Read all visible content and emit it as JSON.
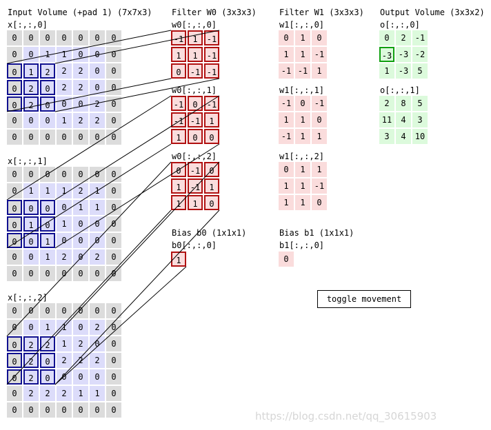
{
  "input": {
    "title": "Input Volume (+pad 1) (7x7x3)",
    "slices": [
      {
        "label": "x[:,:,0]",
        "rows": [
          [
            0,
            0,
            0,
            0,
            0,
            0,
            0
          ],
          [
            0,
            0,
            1,
            1,
            0,
            0,
            0
          ],
          [
            0,
            1,
            2,
            2,
            2,
            0,
            0
          ],
          [
            0,
            2,
            0,
            2,
            2,
            0,
            0
          ],
          [
            0,
            2,
            0,
            0,
            0,
            2,
            0
          ],
          [
            0,
            0,
            0,
            1,
            2,
            2,
            0
          ],
          [
            0,
            0,
            0,
            0,
            0,
            0,
            0
          ]
        ]
      },
      {
        "label": "x[:,:,1]",
        "rows": [
          [
            0,
            0,
            0,
            0,
            0,
            0,
            0
          ],
          [
            0,
            1,
            1,
            1,
            2,
            1,
            0
          ],
          [
            0,
            0,
            0,
            0,
            1,
            1,
            0
          ],
          [
            0,
            1,
            0,
            1,
            0,
            0,
            0
          ],
          [
            0,
            0,
            1,
            0,
            0,
            0,
            0
          ],
          [
            0,
            0,
            1,
            2,
            0,
            2,
            0
          ],
          [
            0,
            0,
            0,
            0,
            0,
            0,
            0
          ]
        ]
      },
      {
        "label": "x[:,:,2]",
        "rows": [
          [
            0,
            0,
            0,
            0,
            0,
            0,
            0
          ],
          [
            0,
            0,
            1,
            1,
            0,
            2,
            0
          ],
          [
            0,
            2,
            2,
            1,
            2,
            0,
            0
          ],
          [
            0,
            2,
            0,
            2,
            2,
            2,
            0
          ],
          [
            0,
            2,
            0,
            0,
            0,
            0,
            0
          ],
          [
            0,
            2,
            2,
            2,
            1,
            1,
            0
          ],
          [
            0,
            0,
            0,
            0,
            0,
            0,
            0
          ]
        ]
      }
    ]
  },
  "filter0": {
    "title": "Filter W0 (3x3x3)",
    "slices": [
      {
        "label": "w0[:,:,0]",
        "rows": [
          [
            "-1",
            "1",
            "-1"
          ],
          [
            "1",
            "1",
            "-1"
          ],
          [
            "0",
            "-1",
            "-1"
          ]
        ]
      },
      {
        "label": "w0[:,:,1]",
        "rows": [
          [
            "-1",
            "0",
            "-1"
          ],
          [
            "-1",
            "-1",
            "1"
          ],
          [
            "1",
            "0",
            "0"
          ]
        ]
      },
      {
        "label": "w0[:,:,2]",
        "rows": [
          [
            "0",
            "-1",
            "0"
          ],
          [
            "1",
            "-1",
            "1"
          ],
          [
            "1",
            "1",
            "0"
          ]
        ]
      }
    ],
    "bias_title": "Bias b0 (1x1x1)",
    "bias_label": "b0[:,:,0]",
    "bias_value": "1"
  },
  "filter1": {
    "title": "Filter W1 (3x3x3)",
    "slices": [
      {
        "label": "w1[:,:,0]",
        "rows": [
          [
            "0",
            "1",
            "0"
          ],
          [
            "1",
            "1",
            "-1"
          ],
          [
            "-1",
            "-1",
            "1"
          ]
        ]
      },
      {
        "label": "w1[:,:,1]",
        "rows": [
          [
            "-1",
            "0",
            "-1"
          ],
          [
            "1",
            "1",
            "0"
          ],
          [
            "-1",
            "1",
            "1"
          ]
        ]
      },
      {
        "label": "w1[:,:,2]",
        "rows": [
          [
            "0",
            "1",
            "1"
          ],
          [
            "1",
            "1",
            "-1"
          ],
          [
            "1",
            "1",
            "0"
          ]
        ]
      }
    ],
    "bias_title": "Bias b1 (1x1x1)",
    "bias_label": "b1[:,:,0]",
    "bias_value": "0"
  },
  "output": {
    "title": "Output Volume (3x3x2)",
    "slices": [
      {
        "label": "o[:,:,0]",
        "rows": [
          [
            "0",
            "2",
            "-1"
          ],
          [
            "-3",
            "-3",
            "-2"
          ],
          [
            "1",
            "-3",
            "5"
          ]
        ]
      },
      {
        "label": "o[:,:,1]",
        "rows": [
          [
            "2",
            "8",
            "5"
          ],
          [
            "11",
            "4",
            "3"
          ],
          [
            "3",
            "4",
            "10"
          ]
        ]
      }
    ]
  },
  "highlight": {
    "input_row": 2,
    "input_col": 0,
    "output_row": 1,
    "output_col": 0
  },
  "toggle_label": "toggle movement",
  "watermark": "https://blog.csdn.net/qq_30615903",
  "colors": {
    "pad": "#dcdcdc",
    "input": "#dcdcfa",
    "weight": "#fadcdc",
    "output": "#dcfadc",
    "input_highlight": "#101090",
    "weight_highlight": "#b01010",
    "output_highlight": "#10a010"
  }
}
